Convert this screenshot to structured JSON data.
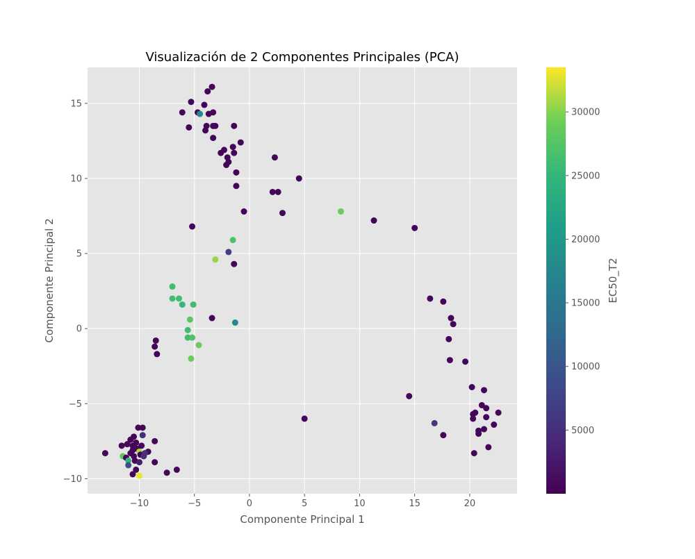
{
  "chart_data": {
    "type": "scatter",
    "title": "Visualización de 2 Componentes Principales (PCA)",
    "xlabel": "Componente Principal 1",
    "ylabel": "Componente Principal 2",
    "xlim": [
      -14.7,
      24.3
    ],
    "ylim": [
      -11.0,
      17.4
    ],
    "xticks": [
      -10,
      -5,
      0,
      5,
      10,
      15,
      20
    ],
    "yticks": [
      -10,
      -5,
      0,
      5,
      10,
      15
    ],
    "xtick_labels": [
      "−10",
      "−5",
      "0",
      "5",
      "10",
      "15",
      "20"
    ],
    "ytick_labels": [
      "−10",
      "−5",
      "0",
      "5",
      "10",
      "15"
    ],
    "grid": true,
    "background": "#e5e5e5",
    "colorscale": "viridis",
    "colorbar": {
      "label": "EC50_T2",
      "range": [
        0,
        33500
      ],
      "ticks": [
        5000,
        10000,
        15000,
        20000,
        25000,
        30000
      ],
      "tick_labels": [
        "5000",
        "10000",
        "15000",
        "20000",
        "25000",
        "30000"
      ]
    },
    "points": [
      {
        "x": -3.4,
        "y": 16.1,
        "c": 500
      },
      {
        "x": -3.8,
        "y": 15.8,
        "c": 500
      },
      {
        "x": -5.3,
        "y": 15.1,
        "c": 500
      },
      {
        "x": -4.1,
        "y": 14.9,
        "c": 500
      },
      {
        "x": -6.1,
        "y": 14.4,
        "c": 500
      },
      {
        "x": -4.7,
        "y": 14.4,
        "c": 800
      },
      {
        "x": -4.5,
        "y": 14.3,
        "c": 18000
      },
      {
        "x": -3.7,
        "y": 14.3,
        "c": 500
      },
      {
        "x": -3.3,
        "y": 14.4,
        "c": 500
      },
      {
        "x": -5.5,
        "y": 13.4,
        "c": 500
      },
      {
        "x": -3.9,
        "y": 13.5,
        "c": 500
      },
      {
        "x": -4.0,
        "y": 13.2,
        "c": 500
      },
      {
        "x": -3.3,
        "y": 13.5,
        "c": 500
      },
      {
        "x": -3.1,
        "y": 13.5,
        "c": 500
      },
      {
        "x": -1.4,
        "y": 13.5,
        "c": 500
      },
      {
        "x": -3.3,
        "y": 12.7,
        "c": 500
      },
      {
        "x": -0.8,
        "y": 12.4,
        "c": 500
      },
      {
        "x": -1.5,
        "y": 12.1,
        "c": 500
      },
      {
        "x": -2.3,
        "y": 11.9,
        "c": 500
      },
      {
        "x": -2.6,
        "y": 11.7,
        "c": 500
      },
      {
        "x": -1.4,
        "y": 11.7,
        "c": 500
      },
      {
        "x": -2.0,
        "y": 11.4,
        "c": 500
      },
      {
        "x": -1.9,
        "y": 11.1,
        "c": 500
      },
      {
        "x": -2.1,
        "y": 10.9,
        "c": 500
      },
      {
        "x": 2.3,
        "y": 11.4,
        "c": 500
      },
      {
        "x": -1.2,
        "y": 10.4,
        "c": 500
      },
      {
        "x": 4.5,
        "y": 10.0,
        "c": 500
      },
      {
        "x": -1.2,
        "y": 9.5,
        "c": 500
      },
      {
        "x": 2.1,
        "y": 9.1,
        "c": 500
      },
      {
        "x": 2.6,
        "y": 9.1,
        "c": 500
      },
      {
        "x": -0.5,
        "y": 7.8,
        "c": 500
      },
      {
        "x": 3.0,
        "y": 7.7,
        "c": 500
      },
      {
        "x": 8.3,
        "y": 7.8,
        "c": 29000
      },
      {
        "x": 11.3,
        "y": 7.2,
        "c": 500
      },
      {
        "x": 15.0,
        "y": 6.7,
        "c": 500
      },
      {
        "x": -5.2,
        "y": 6.8,
        "c": 500
      },
      {
        "x": -1.5,
        "y": 5.9,
        "c": 27000
      },
      {
        "x": -1.9,
        "y": 5.1,
        "c": 7000
      },
      {
        "x": -3.1,
        "y": 4.6,
        "c": 30500
      },
      {
        "x": -1.4,
        "y": 4.3,
        "c": 500
      },
      {
        "x": -7.0,
        "y": 2.8,
        "c": 26000
      },
      {
        "x": -7.0,
        "y": 2.0,
        "c": 26000
      },
      {
        "x": -6.4,
        "y": 2.0,
        "c": 26000
      },
      {
        "x": -6.1,
        "y": 1.6,
        "c": 25000
      },
      {
        "x": -5.1,
        "y": 1.6,
        "c": 26000
      },
      {
        "x": -3.4,
        "y": 0.7,
        "c": 500
      },
      {
        "x": -5.4,
        "y": 0.6,
        "c": 28000
      },
      {
        "x": -1.3,
        "y": 0.4,
        "c": 18000
      },
      {
        "x": -5.6,
        "y": -0.1,
        "c": 26000
      },
      {
        "x": -5.6,
        "y": -0.6,
        "c": 26000
      },
      {
        "x": -5.2,
        "y": -0.6,
        "c": 27000
      },
      {
        "x": -4.6,
        "y": -1.1,
        "c": 29000
      },
      {
        "x": -5.3,
        "y": -2.0,
        "c": 29000
      },
      {
        "x": -8.5,
        "y": -0.8,
        "c": 500
      },
      {
        "x": -8.6,
        "y": -1.2,
        "c": 500
      },
      {
        "x": -8.4,
        "y": -1.7,
        "c": 500
      },
      {
        "x": 16.4,
        "y": 2.0,
        "c": 500
      },
      {
        "x": 17.6,
        "y": 1.8,
        "c": 500
      },
      {
        "x": 18.3,
        "y": 0.7,
        "c": 500
      },
      {
        "x": 18.5,
        "y": 0.3,
        "c": 500
      },
      {
        "x": 18.1,
        "y": -0.7,
        "c": 500
      },
      {
        "x": 18.2,
        "y": -2.1,
        "c": 500
      },
      {
        "x": 19.6,
        "y": -2.2,
        "c": 500
      },
      {
        "x": 20.2,
        "y": -3.9,
        "c": 500
      },
      {
        "x": 21.3,
        "y": -4.1,
        "c": 500
      },
      {
        "x": 14.5,
        "y": -4.5,
        "c": 500
      },
      {
        "x": 21.1,
        "y": -5.1,
        "c": 500
      },
      {
        "x": 21.5,
        "y": -5.3,
        "c": 500
      },
      {
        "x": 20.5,
        "y": -5.6,
        "c": 500
      },
      {
        "x": 20.3,
        "y": -5.7,
        "c": 500
      },
      {
        "x": 22.6,
        "y": -5.6,
        "c": 500
      },
      {
        "x": 21.5,
        "y": -5.9,
        "c": 500
      },
      {
        "x": 20.3,
        "y": -6.0,
        "c": 500
      },
      {
        "x": 5.0,
        "y": -6.0,
        "c": 500
      },
      {
        "x": 16.8,
        "y": -6.3,
        "c": 6000
      },
      {
        "x": 22.2,
        "y": -6.4,
        "c": 500
      },
      {
        "x": 21.3,
        "y": -6.7,
        "c": 500
      },
      {
        "x": 20.8,
        "y": -6.8,
        "c": 500
      },
      {
        "x": 20.8,
        "y": -7.0,
        "c": 500
      },
      {
        "x": 17.6,
        "y": -7.1,
        "c": 500
      },
      {
        "x": 21.7,
        "y": -7.9,
        "c": 500
      },
      {
        "x": 20.4,
        "y": -8.3,
        "c": 500
      },
      {
        "x": -10.1,
        "y": -6.6,
        "c": 500
      },
      {
        "x": -9.7,
        "y": -6.6,
        "c": 500
      },
      {
        "x": -9.7,
        "y": -7.1,
        "c": 5000
      },
      {
        "x": -10.5,
        "y": -7.2,
        "c": 500
      },
      {
        "x": -8.6,
        "y": -7.5,
        "c": 500
      },
      {
        "x": -10.8,
        "y": -7.4,
        "c": 500
      },
      {
        "x": -10.3,
        "y": -7.6,
        "c": 500
      },
      {
        "x": -11.6,
        "y": -7.8,
        "c": 500
      },
      {
        "x": -11.1,
        "y": -7.7,
        "c": 500
      },
      {
        "x": -10.6,
        "y": -7.8,
        "c": 500
      },
      {
        "x": -9.8,
        "y": -7.8,
        "c": 500
      },
      {
        "x": -10.2,
        "y": -8.0,
        "c": 500
      },
      {
        "x": -10.6,
        "y": -8.1,
        "c": 500
      },
      {
        "x": -10.0,
        "y": -8.2,
        "c": 31000
      },
      {
        "x": -9.2,
        "y": -8.2,
        "c": 500
      },
      {
        "x": -13.1,
        "y": -8.3,
        "c": 500
      },
      {
        "x": -10.8,
        "y": -8.3,
        "c": 500
      },
      {
        "x": -9.9,
        "y": -8.4,
        "c": 500
      },
      {
        "x": -9.5,
        "y": -8.3,
        "c": 5000
      },
      {
        "x": -11.5,
        "y": -8.5,
        "c": 28000
      },
      {
        "x": -11.2,
        "y": -8.6,
        "c": 500
      },
      {
        "x": -10.5,
        "y": -8.5,
        "c": 500
      },
      {
        "x": -9.6,
        "y": -8.5,
        "c": 5000
      },
      {
        "x": -11.0,
        "y": -8.8,
        "c": 25000
      },
      {
        "x": -10.4,
        "y": -8.8,
        "c": 500
      },
      {
        "x": -10.0,
        "y": -8.9,
        "c": 3000
      },
      {
        "x": -8.6,
        "y": -8.9,
        "c": 500
      },
      {
        "x": -11.0,
        "y": -9.1,
        "c": 9000
      },
      {
        "x": -10.3,
        "y": -9.4,
        "c": 500
      },
      {
        "x": -6.6,
        "y": -9.4,
        "c": 500
      },
      {
        "x": -7.5,
        "y": -9.6,
        "c": 500
      },
      {
        "x": -10.6,
        "y": -9.7,
        "c": 500
      },
      {
        "x": -10.0,
        "y": -9.8,
        "c": 33000
      }
    ]
  }
}
